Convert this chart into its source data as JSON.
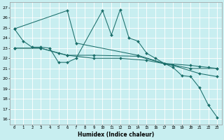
{
  "xlabel": "Humidex (Indice chaleur)",
  "bg_color": "#c8eef0",
  "grid_color": "#ffffff",
  "line_color": "#1a6e6a",
  "ylim": [
    15.5,
    27.5
  ],
  "xlim": [
    -0.5,
    23.5
  ],
  "yticks": [
    16,
    17,
    18,
    19,
    20,
    21,
    22,
    23,
    24,
    25,
    26,
    27
  ],
  "xticks": [
    0,
    1,
    2,
    3,
    4,
    5,
    6,
    7,
    8,
    9,
    10,
    11,
    12,
    13,
    14,
    15,
    16,
    17,
    18,
    19,
    20,
    21,
    22,
    23
  ],
  "series": [
    {
      "x": [
        0,
        1,
        2,
        3,
        4,
        5,
        6,
        7,
        10,
        11,
        12,
        13,
        14,
        15,
        16,
        17,
        18,
        19,
        20,
        21,
        22,
        23
      ],
      "y": [
        24.9,
        23.7,
        23.1,
        23.1,
        23.0,
        21.6,
        21.6,
        22.0,
        26.7,
        24.3,
        26.8,
        24.0,
        23.7,
        22.5,
        22.0,
        21.5,
        21.1,
        20.3,
        20.2,
        19.1,
        17.4,
        16.2
      ]
    },
    {
      "x": [
        0,
        6,
        7,
        14,
        17,
        20,
        21,
        22,
        23
      ],
      "y": [
        24.9,
        26.7,
        23.5,
        22.3,
        21.5,
        21.3,
        21.2,
        21.1,
        21.0
      ]
    },
    {
      "x": [
        0,
        3,
        5,
        6,
        9,
        14,
        17,
        20,
        23
      ],
      "y": [
        23.0,
        23.0,
        22.5,
        22.3,
        22.3,
        22.2,
        21.5,
        21.0,
        21.0
      ]
    },
    {
      "x": [
        0,
        3,
        6,
        9,
        12,
        15,
        18,
        21,
        23
      ],
      "y": [
        23.0,
        23.0,
        22.3,
        22.0,
        22.0,
        21.8,
        21.3,
        20.5,
        20.2
      ]
    }
  ]
}
